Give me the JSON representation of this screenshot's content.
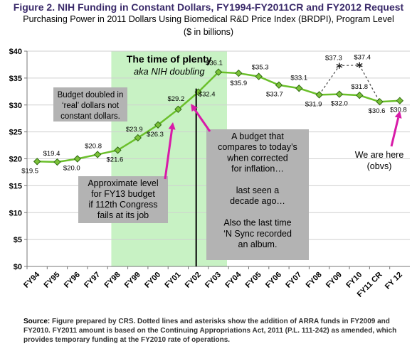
{
  "title": "Figure 2. NIH Funding in Constant Dollars, FY1994-FY2011CR and FY2012 Request",
  "subtitle": "Purchasing Power in 2011 Dollars Using Biomedical R&D Price Index (BRDPI), Program Level",
  "unit": "($ in billions)",
  "source_label": "Source:",
  "source_text": "Figure prepared by CRS. Dotted lines and asterisks show the addition of ARRA funds in FY2009 and FY2010. FY2011 amount is based on the Continuing Appropriations Act, 2011 (P.L. 111-242) as amended, which provides temporary funding at the FY2010 rate of operations.",
  "colors": {
    "series": "#6abf2a",
    "marker": "#7cc23a",
    "marker_stroke": "#2f6b10",
    "highlight": "#c8f2c4",
    "arrow": "#d81ba8",
    "callout_box": "#b3b3b3",
    "title": "#3a2a6a"
  },
  "chart_data": {
    "type": "line",
    "categories": [
      "FY94",
      "FY95",
      "FY96",
      "FY97",
      "FY98",
      "FY99",
      "FY00",
      "FY01",
      "FY02",
      "FY03",
      "FY04",
      "FY05",
      "FY06",
      "FY07",
      "FY08",
      "FY09",
      "FY10",
      "FY11 CR",
      "FY 12"
    ],
    "values": [
      19.5,
      19.4,
      20.0,
      20.8,
      21.6,
      23.9,
      26.3,
      29.2,
      32.4,
      36.1,
      35.9,
      35.3,
      33.7,
      33.1,
      31.9,
      32.0,
      31.8,
      30.6,
      30.8
    ],
    "value_labels": [
      "$19.5",
      "$19.4",
      "$20.0",
      "$20.8",
      "$21.6",
      "$23.9",
      "$26.3",
      "$29.2",
      "$32.4",
      "$36.1",
      "$35.9",
      "$35.3",
      "$33.7",
      "$33.1",
      "$31.9",
      "$32.0",
      "$31.8",
      "$30.6",
      "$30.8"
    ],
    "arra": {
      "categories": [
        "FY09",
        "FY10"
      ],
      "values": [
        37.3,
        37.4
      ],
      "value_labels": [
        "$37.3",
        "$37.4"
      ]
    },
    "y_ticks": [
      "$0",
      "$5",
      "$10",
      "$15",
      "$20",
      "$25",
      "$30",
      "$35",
      "$40"
    ],
    "ylim": [
      0,
      40
    ],
    "grid": true,
    "highlight_band": {
      "from": "FY98",
      "to": "FY03",
      "title": "The time of plenty",
      "subtitle": "aka NIH doubling"
    },
    "annotations": {
      "budget_doubled": [
        "Budget doubled in",
        "‘real’ dollars not",
        "constant dollars."
      ],
      "approximate": [
        "Approximate level",
        "for FY13 budget",
        "if 112th Congress",
        "fails at its job"
      ],
      "compares": [
        "A budget that",
        "compares to today’s",
        "when corrected",
        "for inflation…",
        "",
        "last seen a",
        "decade ago…",
        "",
        "Also the last time",
        "‘N Sync recorded",
        "an album."
      ],
      "we_are_here": [
        "We are here",
        "(obvs)"
      ]
    }
  }
}
